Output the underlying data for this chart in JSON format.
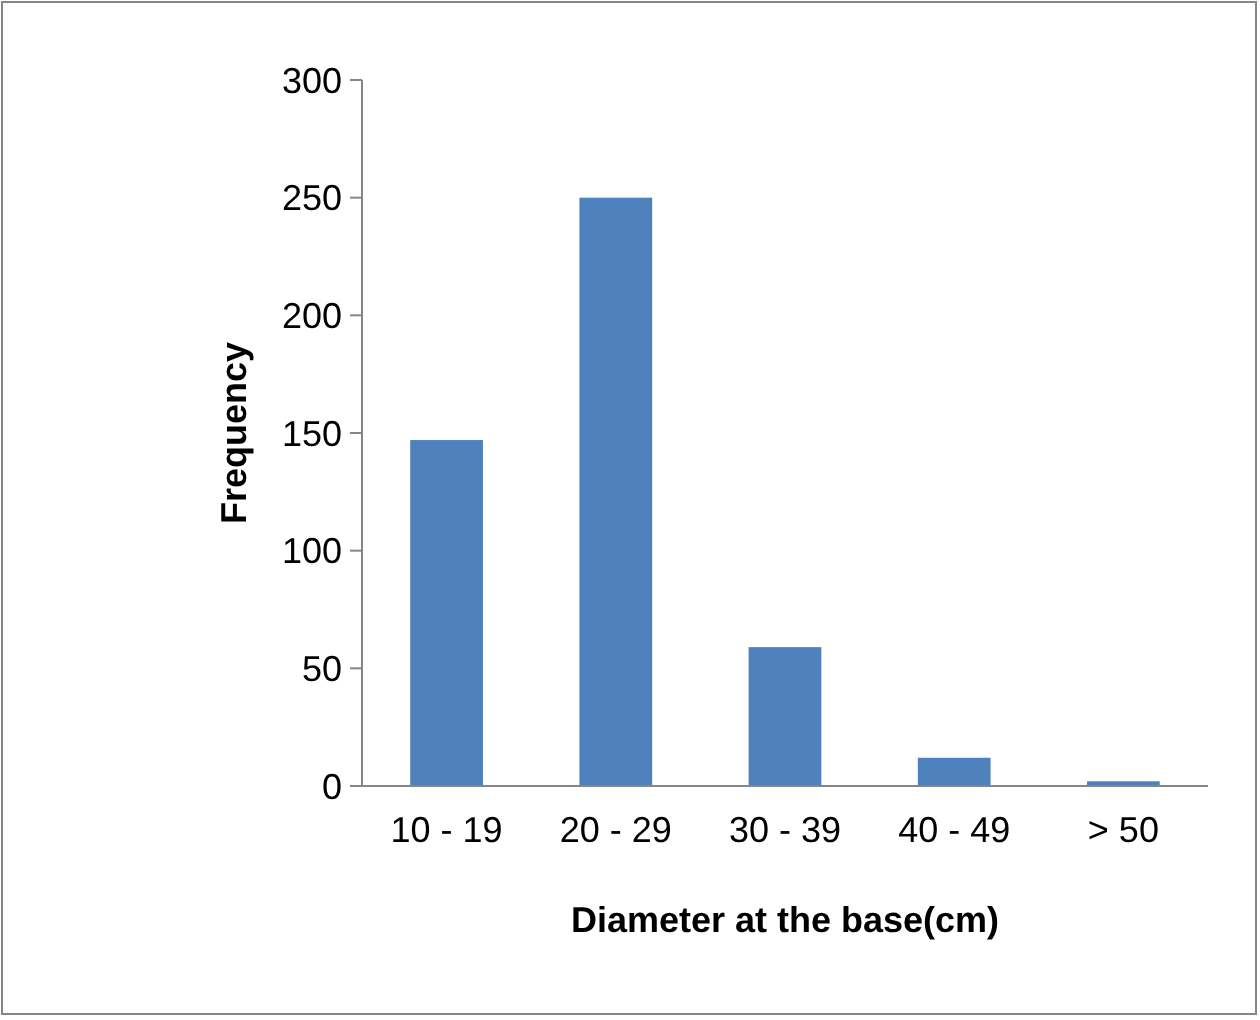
{
  "chart_data": {
    "type": "bar",
    "xlabel": "Diameter at the base(cm)",
    "ylabel": "Frequency",
    "categories": [
      "10 - 19",
      "20 - 29",
      "30 - 39",
      "40 - 49",
      "> 50"
    ],
    "values": [
      147,
      250,
      59,
      12,
      2
    ],
    "color": "#4f81bd",
    "ylim": [
      0,
      300
    ],
    "yticks": [
      0,
      50,
      100,
      150,
      200,
      250,
      300
    ],
    "grid": false
  }
}
